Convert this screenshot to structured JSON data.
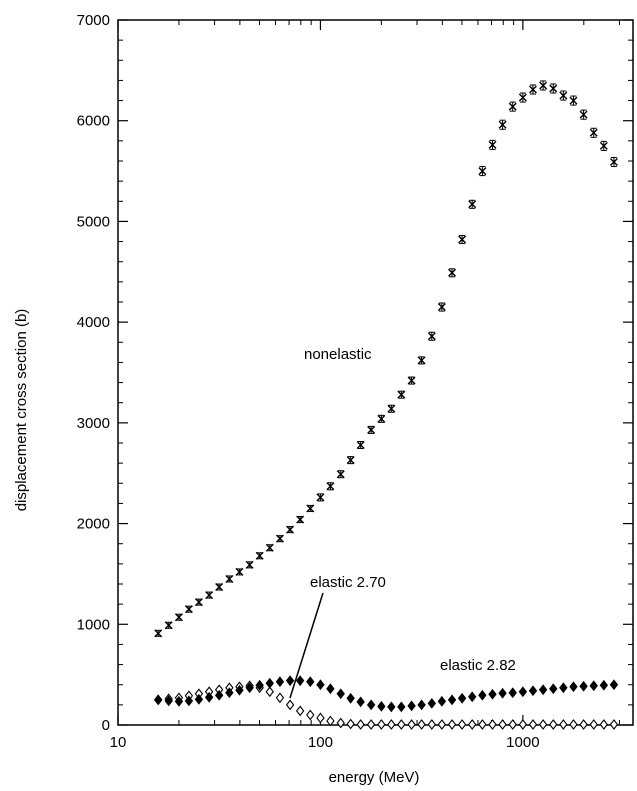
{
  "chart_data": {
    "type": "scatter",
    "xscale": "log",
    "xlim": [
      10,
      3500
    ],
    "ylim": [
      0,
      7000
    ],
    "xlabel": "energy (MeV)",
    "ylabel": "displacement cross section (b)",
    "x_ticks": [
      10,
      100,
      1000
    ],
    "x_tick_labels": [
      "10",
      "100",
      "1000"
    ],
    "y_ticks": [
      0,
      1000,
      2000,
      3000,
      4000,
      5000,
      6000,
      7000
    ],
    "y_tick_labels": [
      "0",
      "1000",
      "2000",
      "3000",
      "4000",
      "5000",
      "6000",
      "7000"
    ],
    "grid": false,
    "annotations": [
      {
        "text": "nonelastic",
        "series": "nonelastic"
      },
      {
        "text": "elastic 2.70",
        "series": "elastic 2.70",
        "pointer": true
      },
      {
        "text": "elastic 2.82",
        "series": "elastic 2.82"
      }
    ],
    "series": [
      {
        "name": "nonelastic",
        "marker": "x",
        "x": [
          15.8,
          17.8,
          20,
          22.4,
          25.1,
          28.2,
          31.6,
          35.5,
          39.8,
          44.7,
          50.1,
          56.2,
          63.1,
          70.8,
          79.4,
          89.1,
          100,
          112,
          126,
          141,
          158,
          178,
          200,
          224,
          251,
          282,
          316,
          355,
          398,
          447,
          501,
          562,
          631,
          708,
          794,
          891,
          1000,
          1122,
          1259,
          1413,
          1585,
          1778,
          1995,
          2239,
          2512,
          2818
        ],
        "y": [
          910,
          990,
          1070,
          1150,
          1220,
          1290,
          1370,
          1450,
          1520,
          1590,
          1680,
          1760,
          1850,
          1940,
          2040,
          2150,
          2260,
          2370,
          2490,
          2630,
          2780,
          2930,
          3040,
          3140,
          3280,
          3420,
          3620,
          3860,
          4150,
          4490,
          4820,
          5170,
          5500,
          5760,
          5960,
          6140,
          6230,
          6310,
          6350,
          6320,
          6250,
          6200,
          6060,
          5880,
          5750,
          5590
        ],
        "errors": [
          30,
          30,
          30,
          30,
          30,
          30,
          30,
          30,
          30,
          30,
          30,
          30,
          30,
          30,
          30,
          30,
          35,
          35,
          35,
          35,
          35,
          35,
          35,
          35,
          35,
          35,
          35,
          40,
          40,
          40,
          40,
          40,
          45,
          45,
          45,
          45,
          45,
          45,
          45,
          45,
          45,
          45,
          45,
          45,
          45,
          45
        ]
      },
      {
        "name": "elastic 2.70",
        "marker": "open-diamond",
        "x": [
          15.8,
          17.8,
          20,
          22.4,
          25.1,
          28.2,
          31.6,
          35.5,
          39.8,
          44.7,
          50.1,
          56.2,
          63.1,
          70.8,
          79.4,
          89.1,
          100,
          112,
          126,
          141,
          158,
          178,
          200,
          224,
          251,
          282,
          316,
          355,
          398,
          447,
          501,
          562,
          631,
          708,
          794,
          891,
          1000,
          1122,
          1259,
          1413,
          1585,
          1778,
          1995,
          2239,
          2512,
          2818
        ],
        "y": [
          250,
          260,
          270,
          290,
          310,
          330,
          350,
          370,
          380,
          390,
          370,
          330,
          270,
          200,
          140,
          100,
          70,
          40,
          20,
          10,
          5,
          5,
          5,
          5,
          5,
          5,
          5,
          5,
          5,
          5,
          5,
          5,
          5,
          5,
          5,
          5,
          5,
          5,
          5,
          5,
          5,
          5,
          5,
          5,
          5,
          5
        ]
      },
      {
        "name": "elastic 2.82",
        "marker": "filled-diamond",
        "x": [
          15.8,
          17.8,
          20,
          22.4,
          25.1,
          28.2,
          31.6,
          35.5,
          39.8,
          44.7,
          50.1,
          56.2,
          63.1,
          70.8,
          79.4,
          89.1,
          100,
          112,
          126,
          141,
          158,
          178,
          200,
          224,
          251,
          282,
          316,
          355,
          398,
          447,
          501,
          562,
          631,
          708,
          794,
          891,
          1000,
          1122,
          1259,
          1413,
          1585,
          1778,
          1995,
          2239,
          2512,
          2818
        ],
        "y": [
          250,
          240,
          235,
          240,
          255,
          275,
          295,
          320,
          345,
          370,
          395,
          415,
          430,
          440,
          440,
          430,
          400,
          360,
          310,
          265,
          230,
          200,
          185,
          180,
          180,
          190,
          200,
          215,
          235,
          250,
          265,
          280,
          295,
          305,
          315,
          320,
          330,
          340,
          350,
          360,
          370,
          380,
          385,
          390,
          395,
          400
        ]
      }
    ]
  }
}
